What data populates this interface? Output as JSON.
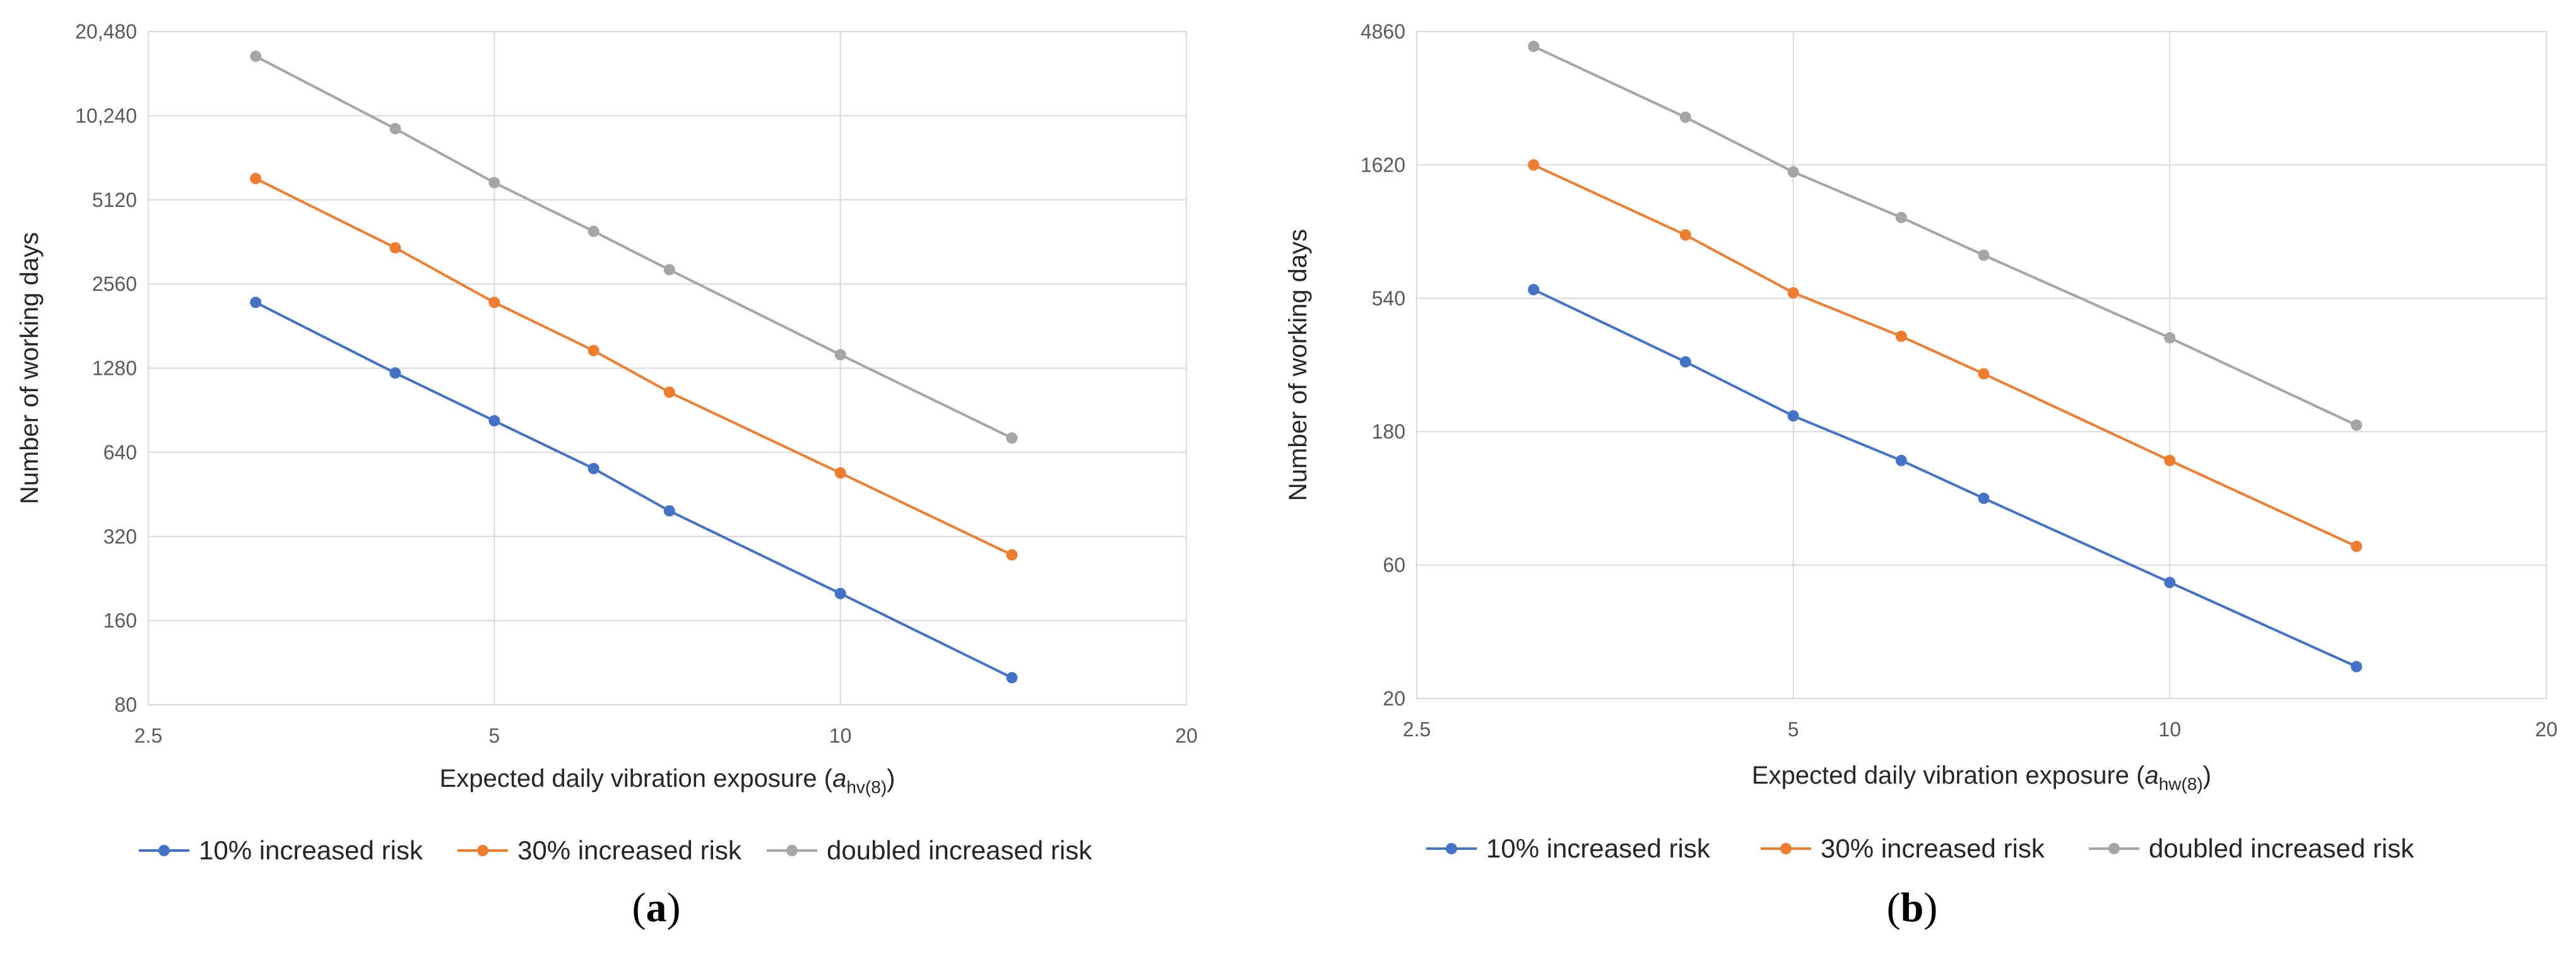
{
  "chart_data": [
    {
      "type": "line",
      "panel_label": "a",
      "xlabel": {
        "text": "Expected daily vibration exposure (",
        "var": "a",
        "sub": "hv(8)",
        "close": ")"
      },
      "ylabel": "Number of working days",
      "x_scale": "log",
      "y_scale": "log",
      "xlim": [
        2.5,
        20
      ],
      "ylim": [
        80,
        20480
      ],
      "x_ticks": [
        2.5,
        5,
        10,
        20
      ],
      "x_tick_labels": [
        "2.5",
        "5",
        "10",
        "20"
      ],
      "y_ticks": [
        80,
        160,
        320,
        640,
        1280,
        2560,
        5120,
        10240,
        20480
      ],
      "y_tick_labels": [
        "80",
        "160",
        "320",
        "640",
        "1280",
        "2560",
        "5120",
        "10,240",
        "20,480"
      ],
      "grid": true,
      "legend_position": "bottom",
      "series": [
        {
          "name": "10% increased risk",
          "color": "#4472c4",
          "x": [
            3.1,
            4.1,
            5.0,
            6.1,
            7.1,
            10.0,
            14.1
          ],
          "y": [
            2200,
            1230,
            830,
            560,
            395,
            200,
            100
          ]
        },
        {
          "name": "30% increased risk",
          "color": "#ed7d31",
          "x": [
            3.1,
            4.1,
            5.0,
            6.1,
            7.1,
            10.0,
            14.1
          ],
          "y": [
            6100,
            3450,
            2200,
            1480,
            1050,
            540,
            275
          ]
        },
        {
          "name": "doubled increased risk",
          "color": "#a5a5a5",
          "x": [
            3.1,
            4.1,
            5.0,
            6.1,
            7.1,
            10.0,
            14.1
          ],
          "y": [
            16700,
            9200,
            5900,
            3950,
            2880,
            1430,
            720
          ]
        }
      ]
    },
    {
      "type": "line",
      "panel_label": "b",
      "xlabel": {
        "text": "Expected daily vibration exposure (",
        "var": "a",
        "sub": "hw(8)",
        "close": ")"
      },
      "ylabel": "Number of working days",
      "x_scale": "log",
      "y_scale": "log",
      "xlim": [
        2.5,
        20
      ],
      "ylim": [
        20,
        4860
      ],
      "x_ticks": [
        2.5,
        5,
        10,
        20
      ],
      "x_tick_labels": [
        "2.5",
        "5",
        "10",
        "20"
      ],
      "y_ticks": [
        20,
        60,
        180,
        540,
        1620,
        4860
      ],
      "y_tick_labels": [
        "20",
        "60",
        "180",
        "540",
        "1620",
        "4860"
      ],
      "grid": true,
      "legend_position": "bottom",
      "series": [
        {
          "name": "10% increased risk",
          "color": "#4472c4",
          "x": [
            3.1,
            4.1,
            5.0,
            6.1,
            7.1,
            10.0,
            14.1
          ],
          "y": [
            580,
            320,
            205,
            142,
            104,
            52,
            26
          ]
        },
        {
          "name": "30% increased risk",
          "color": "#ed7d31",
          "x": [
            3.1,
            4.1,
            5.0,
            6.1,
            7.1,
            10.0,
            14.1
          ],
          "y": [
            1620,
            910,
            565,
            395,
            290,
            142,
            70
          ]
        },
        {
          "name": "doubled increased risk",
          "color": "#a5a5a5",
          "x": [
            3.1,
            4.1,
            5.0,
            6.1,
            7.1,
            10.0,
            14.1
          ],
          "y": [
            4300,
            2400,
            1530,
            1050,
            770,
            390,
            190
          ]
        }
      ]
    }
  ]
}
